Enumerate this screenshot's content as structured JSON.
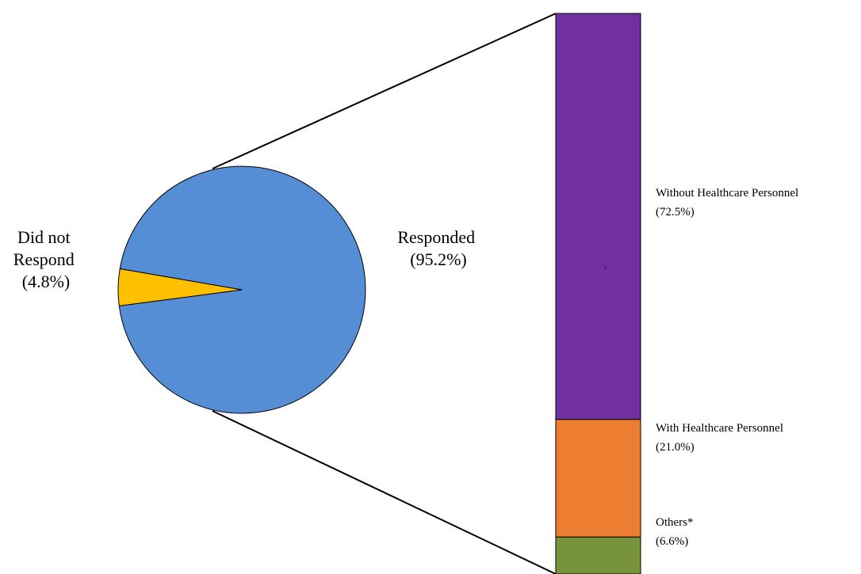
{
  "chart_data": [
    {
      "type": "pie",
      "slices": [
        {
          "label_lines": [
            "Responded",
            "(95.2%)"
          ],
          "value": 95.2,
          "color": "#558ED5"
        },
        {
          "label_lines": [
            "Did not",
            "Respond",
            "(4.8%)"
          ],
          "value": 4.8,
          "color": "#FFC000"
        }
      ]
    },
    {
      "type": "bar",
      "stacked": true,
      "segments": [
        {
          "label_lines": [
            "Without Healthcare Personnel",
            "(72.5%)"
          ],
          "value": 72.5,
          "color": "#7030A0"
        },
        {
          "label_lines": [
            "With Healthcare Personnel",
            "(21.0%)"
          ],
          "value": 21.0,
          "color": "#ED7D31"
        },
        {
          "label_lines": [
            "Others*",
            "(6.6%)"
          ],
          "value": 6.6,
          "color": "#77933C"
        }
      ],
      "inner_mark": "1"
    }
  ]
}
